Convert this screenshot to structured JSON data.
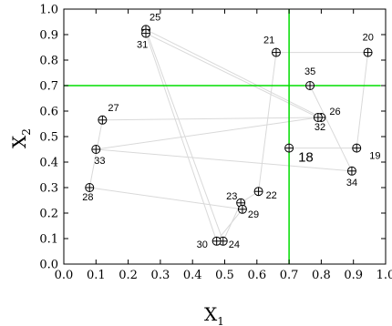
{
  "chart_data": {
    "type": "scatter",
    "xlabel": "X",
    "xlabel_sub": "1",
    "ylabel": "X",
    "ylabel_sub": "2",
    "xlim": [
      0.0,
      1.0
    ],
    "ylim": [
      0.0,
      1.0
    ],
    "x_ticks": [
      "0.0",
      "0.1",
      "0.2",
      "0.3",
      "0.4",
      "0.5",
      "0.6",
      "0.7",
      "0.8",
      "0.9",
      "1.0"
    ],
    "y_ticks": [
      "0.0",
      "0.1",
      "0.2",
      "0.3",
      "0.4",
      "0.5",
      "0.6",
      "0.7",
      "0.8",
      "0.9",
      "1.0"
    ],
    "grid": false,
    "colors": {
      "path": "#d9d9d9",
      "crosshair": "#00dd00",
      "marker": "#000000"
    },
    "crosshair": {
      "x": 0.7,
      "y": 0.7
    },
    "points": [
      {
        "label": "18",
        "x": 0.7,
        "y": 0.455
      },
      {
        "label": "19",
        "x": 0.91,
        "y": 0.455
      },
      {
        "label": "20",
        "x": 0.945,
        "y": 0.83
      },
      {
        "label": "21",
        "x": 0.66,
        "y": 0.83
      },
      {
        "label": "22",
        "x": 0.605,
        "y": 0.285
      },
      {
        "label": "23",
        "x": 0.55,
        "y": 0.24
      },
      {
        "label": "24",
        "x": 0.495,
        "y": 0.09
      },
      {
        "label": "25",
        "x": 0.255,
        "y": 0.92
      },
      {
        "label": "26",
        "x": 0.8,
        "y": 0.575
      },
      {
        "label": "27",
        "x": 0.12,
        "y": 0.565
      },
      {
        "label": "28",
        "x": 0.08,
        "y": 0.3
      },
      {
        "label": "29",
        "x": 0.555,
        "y": 0.215
      },
      {
        "label": "30",
        "x": 0.475,
        "y": 0.09
      },
      {
        "label": "31",
        "x": 0.255,
        "y": 0.905
      },
      {
        "label": "32",
        "x": 0.79,
        "y": 0.575
      },
      {
        "label": "33",
        "x": 0.1,
        "y": 0.45
      },
      {
        "label": "34",
        "x": 0.895,
        "y": 0.365
      },
      {
        "label": "35",
        "x": 0.765,
        "y": 0.7
      }
    ]
  }
}
